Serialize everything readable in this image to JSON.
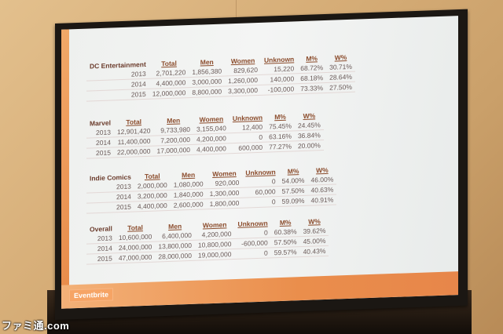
{
  "columns": [
    "Total",
    "Men",
    "Women",
    "Unknown",
    "M%",
    "W%"
  ],
  "sections": [
    {
      "name": "DC Entertainment",
      "rows": [
        {
          "year": "2013",
          "total": "2,701,220",
          "men": "1,856,380",
          "women": "829,620",
          "unknown": "15,220",
          "mp": "68.72%",
          "wp": "30.71%"
        },
        {
          "year": "2014",
          "total": "4,400,000",
          "men": "3,000,000",
          "women": "1,260,000",
          "unknown": "140,000",
          "mp": "68.18%",
          "wp": "28.64%"
        },
        {
          "year": "2015",
          "total": "12,000,000",
          "men": "8,800,000",
          "women": "3,300,000",
          "unknown": "-100,000",
          "mp": "73.33%",
          "wp": "27.50%"
        }
      ]
    },
    {
      "name": "Marvel",
      "rows": [
        {
          "year": "2013",
          "total": "12,901,420",
          "men": "9,733,980",
          "women": "3,155,040",
          "unknown": "12,400",
          "mp": "75.45%",
          "wp": "24.45%"
        },
        {
          "year": "2014",
          "total": "11,400,000",
          "men": "7,200,000",
          "women": "4,200,000",
          "unknown": "0",
          "mp": "63.16%",
          "wp": "36.84%"
        },
        {
          "year": "2015",
          "total": "22,000,000",
          "men": "17,000,000",
          "women": "4,400,000",
          "unknown": "600,000",
          "mp": "77.27%",
          "wp": "20.00%"
        }
      ]
    },
    {
      "name": "Indie Comics",
      "rows": [
        {
          "year": "2013",
          "total": "2,000,000",
          "men": "1,080,000",
          "women": "920,000",
          "unknown": "0",
          "mp": "54.00%",
          "wp": "46.00%"
        },
        {
          "year": "2014",
          "total": "3,200,000",
          "men": "1,840,000",
          "women": "1,300,000",
          "unknown": "60,000",
          "mp": "57.50%",
          "wp": "40.63%"
        },
        {
          "year": "2015",
          "total": "4,400,000",
          "men": "2,600,000",
          "women": "1,800,000",
          "unknown": "0",
          "mp": "59.09%",
          "wp": "40.91%"
        }
      ]
    },
    {
      "name": "Overall",
      "rows": [
        {
          "year": "2013",
          "total": "10,600,000",
          "men": "6,400,000",
          "women": "4,200,000",
          "unknown": "0",
          "mp": "60.38%",
          "wp": "39.62%"
        },
        {
          "year": "2014",
          "total": "24,000,000",
          "men": "13,800,000",
          "women": "10,800,000",
          "unknown": "-600,000",
          "mp": "57.50%",
          "wp": "45.00%"
        },
        {
          "year": "2015",
          "total": "47,000,000",
          "men": "28,000,000",
          "women": "19,000,000",
          "unknown": "0",
          "mp": "59.57%",
          "wp": "40.43%"
        }
      ]
    }
  ],
  "logo": "Eventbrite",
  "watermark": "ファミ通.com"
}
